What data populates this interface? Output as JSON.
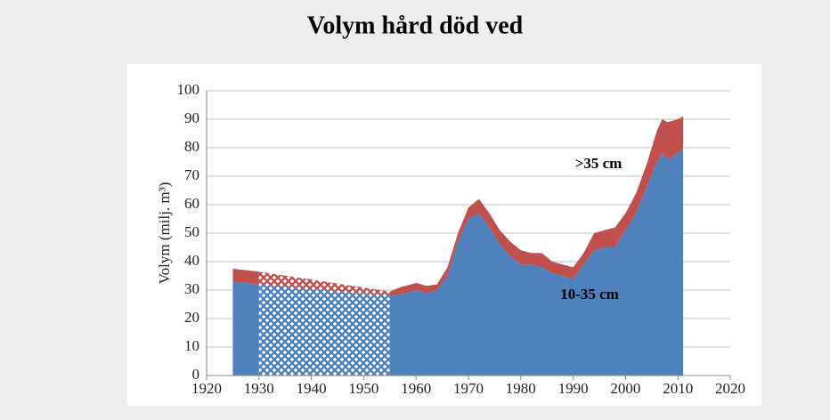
{
  "chart_data": {
    "type": "stacked_area",
    "title": "Volym hård död ved",
    "ylabel": "Volym (milj. m³)",
    "x": [
      1925,
      1930,
      1955,
      1957,
      1960,
      1962,
      1964,
      1966,
      1968,
      1970,
      1972,
      1974,
      1976,
      1978,
      1980,
      1982,
      1984,
      1986,
      1988,
      1990,
      1992,
      1994,
      1996,
      1998,
      2000,
      2002,
      2004,
      2006,
      2007,
      2008,
      2010,
      2011
    ],
    "series": [
      {
        "name": "10-35 cm",
        "color": "#4f81bd",
        "values": [
          33,
          32,
          28,
          28.5,
          30,
          29,
          30,
          35,
          47,
          55,
          57,
          52,
          46,
          42,
          39,
          39,
          38,
          36,
          35,
          34,
          39,
          44,
          45,
          45,
          51,
          57,
          66,
          75,
          78,
          76,
          78,
          80
        ]
      },
      {
        "name": ">35 cm",
        "color": "#c0504d",
        "values": [
          4.5,
          4.5,
          1.5,
          2.5,
          2.5,
          2.5,
          2,
          3,
          3,
          4,
          5,
          5,
          5,
          5,
          5,
          4,
          5,
          4,
          4,
          4,
          4,
          6,
          6,
          7,
          6,
          7,
          8,
          11,
          12,
          13,
          12,
          11
        ]
      }
    ],
    "hatched_x": [
      1930,
      1955
    ],
    "xlim": [
      1920,
      2020
    ],
    "xticks": [
      1920,
      1930,
      1940,
      1950,
      1960,
      1970,
      1980,
      1990,
      2000,
      2010,
      2020
    ],
    "ylim": [
      0,
      100
    ],
    "yticks": [
      0,
      10,
      20,
      30,
      40,
      50,
      60,
      70,
      80,
      90,
      100
    ],
    "grid": true
  }
}
